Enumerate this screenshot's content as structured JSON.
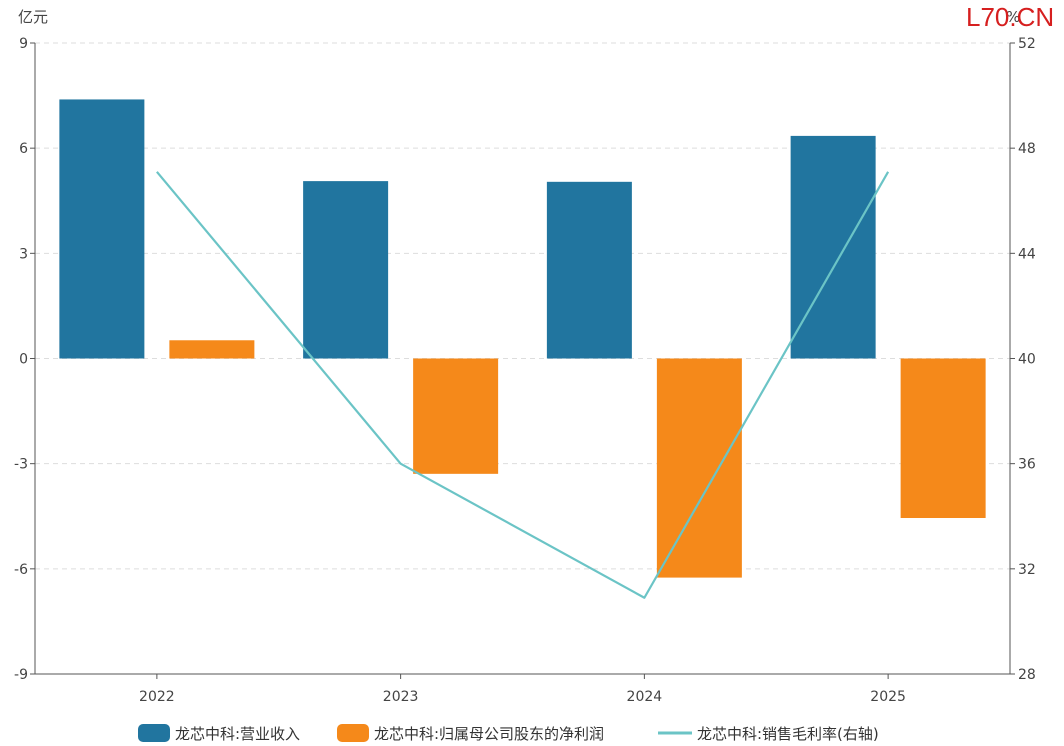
{
  "watermark": "L70.CN",
  "chart_data": {
    "type": "bar",
    "categories": [
      "2022",
      "2023",
      "2024",
      "2025"
    ],
    "left_axis": {
      "unit": "亿元",
      "ylim": [
        -9,
        9
      ],
      "ticks": [
        9,
        6,
        3,
        0,
        -3,
        -6,
        -9
      ]
    },
    "right_axis": {
      "unit": "%",
      "ylim": [
        28,
        52
      ],
      "ticks": [
        52,
        48,
        44,
        40,
        36,
        32,
        28
      ]
    },
    "series": [
      {
        "name": "龙芯中科:营业收入",
        "type": "bar",
        "axis": "left",
        "color": "#21759f",
        "values": [
          7.39,
          5.06,
          5.04,
          6.35
        ]
      },
      {
        "name": "龙芯中科:归属母公司股东的净利润",
        "type": "bar",
        "axis": "left",
        "color": "#f5891a",
        "values": [
          0.52,
          -3.29,
          -6.25,
          -4.55
        ]
      },
      {
        "name": "龙芯中科:销售毛利率(右轴)",
        "type": "line",
        "axis": "right",
        "color": "#6bc4c6",
        "values": [
          47.1,
          36.0,
          30.9,
          47.1
        ]
      }
    ],
    "grid": true,
    "legend_position": "bottom"
  }
}
